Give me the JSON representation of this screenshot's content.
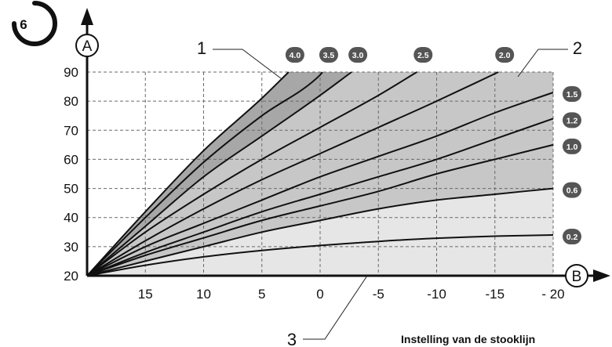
{
  "figure_number": "6",
  "caption": "Instelling van de stooklijn",
  "callouts": [
    "1",
    "2",
    "3"
  ],
  "axis_letters": {
    "y": "A",
    "x": "B"
  },
  "colors": {
    "zone_dark": "#a7a7a7",
    "zone_mid": "#c7c7c7",
    "zone_light": "#e6e6e6",
    "curve": "#111111",
    "grid": "#6a6a6a",
    "pill": "#555555"
  },
  "chart_data": {
    "type": "line",
    "title": "",
    "xlabel": "B",
    "ylabel": "A",
    "x_reversed": true,
    "xlim": [
      20,
      -20
    ],
    "ylim": [
      20,
      90
    ],
    "x_ticks": [
      15,
      10,
      5,
      0,
      -5,
      -10,
      -15,
      -20
    ],
    "x_tick_labels": [
      "15",
      "10",
      "5",
      "0",
      "-5",
      "-10",
      "-15",
      "- 20"
    ],
    "y_ticks": [
      20,
      30,
      40,
      50,
      60,
      70,
      80,
      90
    ],
    "y_tick_labels": [
      "20",
      "30",
      "40",
      "50",
      "60",
      "70",
      "80",
      "90"
    ],
    "grid": true,
    "series": [
      {
        "name": "4.0",
        "x": [
          20,
          15,
          10,
          5,
          2.7
        ],
        "y": [
          20,
          42,
          63,
          81,
          90
        ]
      },
      {
        "name": "3.5",
        "x": [
          20,
          15,
          10,
          5,
          0,
          -0.2
        ],
        "y": [
          20,
          40,
          59,
          75,
          89,
          90
        ]
      },
      {
        "name": "3.0",
        "x": [
          20,
          15,
          10,
          5,
          0,
          -2.7
        ],
        "y": [
          20,
          37,
          54,
          68,
          82,
          90
        ]
      },
      {
        "name": "2.5",
        "x": [
          20,
          15,
          10,
          5,
          0,
          -5,
          -8.3
        ],
        "y": [
          20,
          35,
          48,
          60,
          71,
          82,
          90
        ]
      },
      {
        "name": "2.0",
        "x": [
          20,
          15,
          10,
          5,
          0,
          -5,
          -10,
          -15.3
        ],
        "y": [
          20,
          32,
          43,
          53,
          62,
          71,
          80,
          90
        ]
      },
      {
        "name": "1.5",
        "x": [
          20,
          15,
          10,
          5,
          0,
          -5,
          -10,
          -15,
          -20
        ],
        "y": [
          20,
          30,
          38,
          46,
          54,
          61,
          68,
          76,
          83
        ]
      },
      {
        "name": "1.2",
        "x": [
          20,
          15,
          10,
          5,
          0,
          -5,
          -10,
          -15,
          -20
        ],
        "y": [
          20,
          28,
          35,
          42,
          48,
          54,
          60,
          67,
          74
        ]
      },
      {
        "name": "1.0",
        "x": [
          20,
          15,
          10,
          5,
          0,
          -5,
          -10,
          -15,
          -20
        ],
        "y": [
          20,
          27,
          33,
          39,
          44,
          49,
          55,
          60,
          65
        ]
      },
      {
        "name": "0.6",
        "x": [
          20,
          15,
          10,
          5,
          0,
          -5,
          -10,
          -15,
          -20
        ],
        "y": [
          20,
          25,
          30,
          35,
          39,
          43,
          46,
          48,
          50
        ]
      },
      {
        "name": "0.2",
        "x": [
          20,
          15,
          10,
          5,
          0,
          -5,
          -10,
          -15,
          -20
        ],
        "y": [
          20,
          23.6,
          26.5,
          28.7,
          30.4,
          31.8,
          32.9,
          33.6,
          34
        ]
      }
    ],
    "zones": [
      {
        "label": "1",
        "between": [
          "4.0",
          "3.0"
        ],
        "color": "zone_dark"
      },
      {
        "label": "2",
        "between": [
          "3.0",
          "0.6"
        ],
        "color": "zone_mid"
      },
      {
        "label": "3",
        "between": [
          "0.6",
          "baseline"
        ],
        "color": "zone_light"
      }
    ]
  }
}
